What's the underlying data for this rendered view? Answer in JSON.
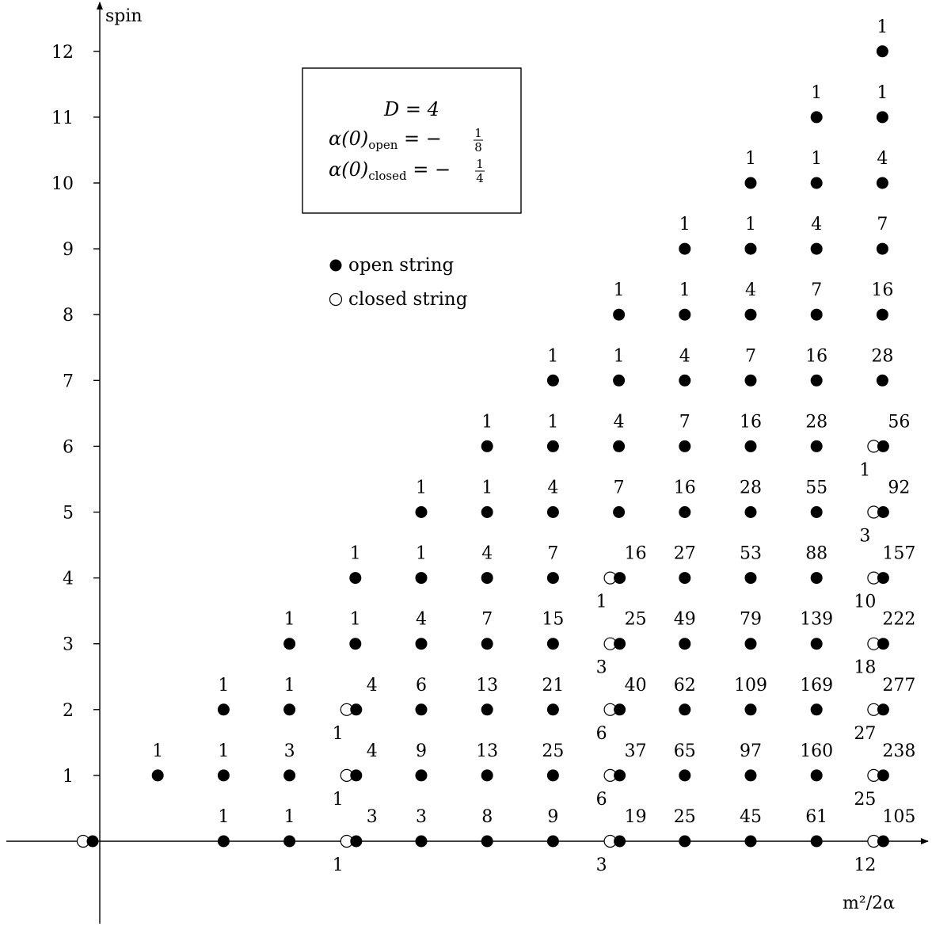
{
  "chart_data": {
    "type": "scatter",
    "xlabel": "m²/2α",
    "ylabel": "spin",
    "xlim": [
      -0.2,
      12.6
    ],
    "ylim": [
      -1.25,
      12.75
    ],
    "yticks": [
      1,
      2,
      3,
      4,
      5,
      6,
      7,
      8,
      9,
      10,
      11,
      12
    ],
    "annotation_box": {
      "line1": "D = 4",
      "line2_main": "α(0)",
      "line2_sub": "open",
      "line2_rest": " = −",
      "line2_frac_num": "1",
      "line2_frac_den": "8",
      "line3_main": "α(0)",
      "line3_sub": "closed",
      "line3_rest": " = −",
      "line3_frac_num": "1",
      "line3_frac_den": "4"
    },
    "legend": {
      "open_label": "open string",
      "closed_label": "closed string"
    },
    "series": [
      {
        "name": "open string",
        "marker": "filled",
        "points": [
          {
            "x": 0,
            "y": 0,
            "count": ""
          },
          {
            "x": 1,
            "y": 1,
            "count": "1"
          },
          {
            "x": 2,
            "y": 0,
            "count": "1"
          },
          {
            "x": 2,
            "y": 1,
            "count": "1"
          },
          {
            "x": 2,
            "y": 2,
            "count": "1"
          },
          {
            "x": 3,
            "y": 0,
            "count": "1"
          },
          {
            "x": 3,
            "y": 1,
            "count": "3"
          },
          {
            "x": 3,
            "y": 2,
            "count": "1"
          },
          {
            "x": 3,
            "y": 3,
            "count": "1"
          },
          {
            "x": 4,
            "y": 0,
            "count": "3"
          },
          {
            "x": 4,
            "y": 1,
            "count": "4"
          },
          {
            "x": 4,
            "y": 2,
            "count": "4"
          },
          {
            "x": 4,
            "y": 3,
            "count": "1"
          },
          {
            "x": 4,
            "y": 4,
            "count": "1"
          },
          {
            "x": 5,
            "y": 0,
            "count": "3"
          },
          {
            "x": 5,
            "y": 1,
            "count": "9"
          },
          {
            "x": 5,
            "y": 2,
            "count": "6"
          },
          {
            "x": 5,
            "y": 3,
            "count": "4"
          },
          {
            "x": 5,
            "y": 4,
            "count": "1"
          },
          {
            "x": 5,
            "y": 5,
            "count": "1"
          },
          {
            "x": 6,
            "y": 0,
            "count": "8"
          },
          {
            "x": 6,
            "y": 1,
            "count": "13"
          },
          {
            "x": 6,
            "y": 2,
            "count": "13"
          },
          {
            "x": 6,
            "y": 3,
            "count": "7"
          },
          {
            "x": 6,
            "y": 4,
            "count": "4"
          },
          {
            "x": 6,
            "y": 5,
            "count": "1"
          },
          {
            "x": 6,
            "y": 6,
            "count": "1"
          },
          {
            "x": 7,
            "y": 0,
            "count": "9"
          },
          {
            "x": 7,
            "y": 1,
            "count": "25"
          },
          {
            "x": 7,
            "y": 2,
            "count": "21"
          },
          {
            "x": 7,
            "y": 3,
            "count": "15"
          },
          {
            "x": 7,
            "y": 4,
            "count": "7"
          },
          {
            "x": 7,
            "y": 5,
            "count": "4"
          },
          {
            "x": 7,
            "y": 6,
            "count": "1"
          },
          {
            "x": 7,
            "y": 7,
            "count": "1"
          },
          {
            "x": 8,
            "y": 0,
            "count": "19"
          },
          {
            "x": 8,
            "y": 1,
            "count": "37"
          },
          {
            "x": 8,
            "y": 2,
            "count": "40"
          },
          {
            "x": 8,
            "y": 3,
            "count": "25"
          },
          {
            "x": 8,
            "y": 4,
            "count": "16"
          },
          {
            "x": 8,
            "y": 5,
            "count": "7"
          },
          {
            "x": 8,
            "y": 6,
            "count": "4"
          },
          {
            "x": 8,
            "y": 7,
            "count": "1"
          },
          {
            "x": 8,
            "y": 8,
            "count": "1"
          },
          {
            "x": 9,
            "y": 0,
            "count": "25"
          },
          {
            "x": 9,
            "y": 1,
            "count": "65"
          },
          {
            "x": 9,
            "y": 2,
            "count": "62"
          },
          {
            "x": 9,
            "y": 3,
            "count": "49"
          },
          {
            "x": 9,
            "y": 4,
            "count": "27"
          },
          {
            "x": 9,
            "y": 5,
            "count": "16"
          },
          {
            "x": 9,
            "y": 6,
            "count": "7"
          },
          {
            "x": 9,
            "y": 7,
            "count": "4"
          },
          {
            "x": 9,
            "y": 8,
            "count": "1"
          },
          {
            "x": 9,
            "y": 9,
            "count": "1"
          },
          {
            "x": 10,
            "y": 0,
            "count": "45"
          },
          {
            "x": 10,
            "y": 1,
            "count": "97"
          },
          {
            "x": 10,
            "y": 2,
            "count": "109"
          },
          {
            "x": 10,
            "y": 3,
            "count": "79"
          },
          {
            "x": 10,
            "y": 4,
            "count": "53"
          },
          {
            "x": 10,
            "y": 5,
            "count": "28"
          },
          {
            "x": 10,
            "y": 6,
            "count": "16"
          },
          {
            "x": 10,
            "y": 7,
            "count": "7"
          },
          {
            "x": 10,
            "y": 8,
            "count": "4"
          },
          {
            "x": 10,
            "y": 9,
            "count": "1"
          },
          {
            "x": 10,
            "y": 10,
            "count": "1"
          },
          {
            "x": 11,
            "y": 0,
            "count": "61"
          },
          {
            "x": 11,
            "y": 1,
            "count": "160"
          },
          {
            "x": 11,
            "y": 2,
            "count": "169"
          },
          {
            "x": 11,
            "y": 3,
            "count": "139"
          },
          {
            "x": 11,
            "y": 4,
            "count": "88"
          },
          {
            "x": 11,
            "y": 5,
            "count": "55"
          },
          {
            "x": 11,
            "y": 6,
            "count": "28"
          },
          {
            "x": 11,
            "y": 7,
            "count": "16"
          },
          {
            "x": 11,
            "y": 8,
            "count": "7"
          },
          {
            "x": 11,
            "y": 9,
            "count": "4"
          },
          {
            "x": 11,
            "y": 10,
            "count": "1"
          },
          {
            "x": 11,
            "y": 11,
            "count": "1"
          },
          {
            "x": 12,
            "y": 0,
            "count": "105"
          },
          {
            "x": 12,
            "y": 1,
            "count": "238"
          },
          {
            "x": 12,
            "y": 2,
            "count": "277"
          },
          {
            "x": 12,
            "y": 3,
            "count": "222"
          },
          {
            "x": 12,
            "y": 4,
            "count": "157"
          },
          {
            "x": 12,
            "y": 5,
            "count": "92"
          },
          {
            "x": 12,
            "y": 6,
            "count": "56"
          },
          {
            "x": 12,
            "y": 7,
            "count": "28"
          },
          {
            "x": 12,
            "y": 8,
            "count": "16"
          },
          {
            "x": 12,
            "y": 9,
            "count": "7"
          },
          {
            "x": 12,
            "y": 10,
            "count": "4"
          },
          {
            "x": 12,
            "y": 11,
            "count": "1"
          },
          {
            "x": 12,
            "y": 12,
            "count": "1"
          }
        ]
      },
      {
        "name": "closed string",
        "marker": "hollow",
        "points": [
          {
            "x": 0,
            "y": 0,
            "count": ""
          },
          {
            "x": 4,
            "y": 0,
            "count": "1"
          },
          {
            "x": 4,
            "y": 1,
            "count": "1"
          },
          {
            "x": 4,
            "y": 2,
            "count": "1"
          },
          {
            "x": 8,
            "y": 0,
            "count": "3"
          },
          {
            "x": 8,
            "y": 1,
            "count": "6"
          },
          {
            "x": 8,
            "y": 2,
            "count": "6"
          },
          {
            "x": 8,
            "y": 3,
            "count": "3"
          },
          {
            "x": 8,
            "y": 4,
            "count": "1"
          },
          {
            "x": 12,
            "y": 0,
            "count": "12"
          },
          {
            "x": 12,
            "y": 1,
            "count": "25"
          },
          {
            "x": 12,
            "y": 2,
            "count": "27"
          },
          {
            "x": 12,
            "y": 3,
            "count": "18"
          },
          {
            "x": 12,
            "y": 4,
            "count": "10"
          },
          {
            "x": 12,
            "y": 5,
            "count": "3"
          },
          {
            "x": 12,
            "y": 6,
            "count": "1"
          }
        ]
      }
    ]
  }
}
